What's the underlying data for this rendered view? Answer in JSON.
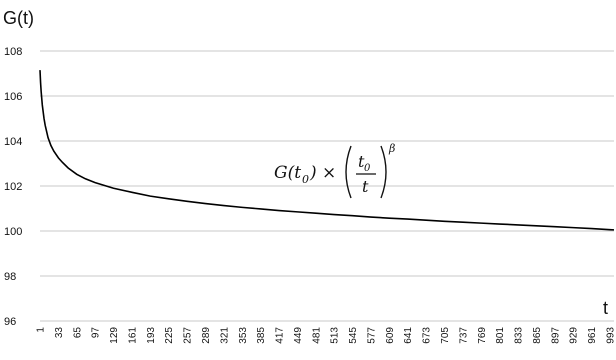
{
  "chart_data": {
    "type": "line",
    "title": "",
    "ylabel": "G(t)",
    "xlabel": "t",
    "ylim": [
      96,
      108
    ],
    "yticks": [
      96,
      98,
      100,
      102,
      104,
      106,
      108
    ],
    "xlim": [
      1,
      1000
    ],
    "xticks": [
      1,
      33,
      65,
      97,
      129,
      161,
      193,
      225,
      257,
      289,
      321,
      353,
      385,
      417,
      449,
      481,
      513,
      545,
      577,
      609,
      641,
      673,
      705,
      737,
      769,
      801,
      833,
      865,
      897,
      929,
      961,
      993
    ],
    "grid": "horizontal",
    "legend": "none",
    "series": [
      {
        "values_x": [
          1,
          2,
          3,
          5,
          8,
          10,
          15,
          20,
          25,
          33,
          40,
          50,
          65,
          80,
          97,
          129,
          161,
          193,
          225,
          257,
          289,
          321,
          353,
          385,
          417,
          449,
          481,
          513,
          545,
          577,
          609,
          641,
          673,
          705,
          737,
          769,
          801,
          833,
          865,
          897,
          929,
          961,
          993,
          1000
        ],
        "values_y": [
          107.15,
          106.6,
          106.2,
          105.6,
          105.0,
          104.7,
          104.15,
          103.8,
          103.55,
          103.25,
          103.05,
          102.8,
          102.52,
          102.32,
          102.15,
          101.9,
          101.72,
          101.55,
          101.43,
          101.32,
          101.22,
          101.13,
          101.05,
          100.98,
          100.91,
          100.85,
          100.79,
          100.73,
          100.68,
          100.62,
          100.57,
          100.53,
          100.48,
          100.43,
          100.39,
          100.35,
          100.31,
          100.27,
          100.23,
          100.19,
          100.15,
          100.11,
          100.06,
          100.05
        ],
        "color": "#000000"
      }
    ],
    "annotation": {
      "lhs": "G(t",
      "lhs_sub": "0",
      "lhs_close": ") ×",
      "frac_num": "t",
      "frac_num_sub": "0",
      "frac_den": "t",
      "exponent": "β"
    }
  }
}
